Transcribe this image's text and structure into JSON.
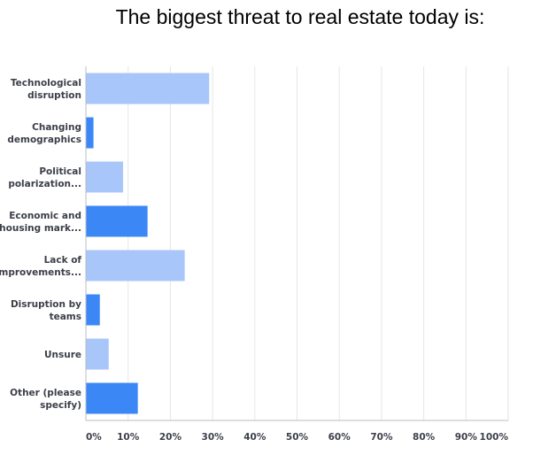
{
  "chart_data": {
    "type": "bar",
    "orientation": "horizontal",
    "title": "The biggest threat to real estate today is:",
    "categories": [
      [
        "Technological",
        "disruption"
      ],
      [
        "Changing",
        "demographics"
      ],
      [
        "Political",
        "polarization..."
      ],
      [
        "Economic and",
        "housing mark..."
      ],
      [
        "Lack of",
        "improvements..."
      ],
      [
        "Disruption by",
        "teams"
      ],
      [
        "Unsure"
      ],
      [
        "Other (please",
        "specify)"
      ]
    ],
    "values": [
      29.2,
      1.8,
      8.8,
      14.6,
      23.4,
      3.3,
      5.4,
      12.3
    ],
    "xlim": [
      0,
      100
    ],
    "x_ticks": [
      0,
      10,
      20,
      30,
      40,
      50,
      60,
      70,
      80,
      90,
      100
    ],
    "x_tick_labels": [
      "0%",
      "10%",
      "20%",
      "30%",
      "40%",
      "50%",
      "60%",
      "70%",
      "80%",
      "90%",
      "100%"
    ],
    "grid": "vertical",
    "legend": "none",
    "colors": {
      "light_bar": "#a8c6fa",
      "dark_bar": "#3b87f6",
      "grid": "#e4e6ea",
      "axis": "#b8bcc4",
      "label": "#3c3f4a"
    }
  }
}
